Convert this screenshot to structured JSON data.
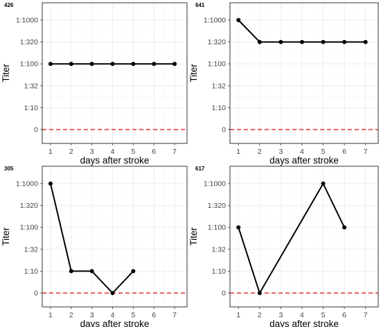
{
  "chart_data": [
    {
      "type": "line",
      "panel_label": "426",
      "xlabel": "days after stroke",
      "ylabel": "Titer",
      "x_ticks": [
        "1",
        "2",
        "3",
        "4",
        "5",
        "6",
        "7"
      ],
      "y_ticks": [
        "0",
        "1:10",
        "1:32",
        "1:100",
        "1:320",
        "1:1000"
      ],
      "xlim": [
        0.6,
        7.6
      ],
      "x": [
        1,
        2,
        3,
        4,
        5,
        6,
        7
      ],
      "values": [
        "1:100",
        "1:100",
        "1:100",
        "1:100",
        "1:100",
        "1:100",
        "1:100"
      ],
      "reference_line": "0",
      "grid": true
    },
    {
      "type": "line",
      "panel_label": "641",
      "xlabel": "days after stroke",
      "ylabel": "Titer",
      "x_ticks": [
        "1",
        "2",
        "3",
        "4",
        "5",
        "6",
        "7"
      ],
      "y_ticks": [
        "0",
        "1:10",
        "1:32",
        "1:100",
        "1:320",
        "1:1000"
      ],
      "xlim": [
        0.6,
        7.6
      ],
      "x": [
        1,
        2,
        3,
        4,
        5,
        6,
        7
      ],
      "values": [
        "1:1000",
        "1:320",
        "1:320",
        "1:320",
        "1:320",
        "1:320",
        "1:320"
      ],
      "reference_line": "0",
      "grid": true
    },
    {
      "type": "line",
      "panel_label": "305",
      "xlabel": "days after stroke",
      "ylabel": "Titer",
      "x_ticks": [
        "1",
        "2",
        "3",
        "4",
        "5",
        "6",
        "7"
      ],
      "y_ticks": [
        "0",
        "1:10",
        "1:32",
        "1:100",
        "1:320",
        "1:1000"
      ],
      "xlim": [
        0.6,
        7.6
      ],
      "x": [
        1,
        2,
        3,
        4,
        5
      ],
      "values": [
        "1:1000",
        "1:10",
        "1:10",
        "0",
        "1:10"
      ],
      "reference_line": "0",
      "grid": true
    },
    {
      "type": "line",
      "panel_label": "617",
      "xlabel": "days after stroke",
      "ylabel": "Titer",
      "x_ticks": [
        "1",
        "2",
        "3",
        "4",
        "5",
        "6",
        "7"
      ],
      "y_ticks": [
        "0",
        "1:10",
        "1:32",
        "1:100",
        "1:320",
        "1:1000"
      ],
      "xlim": [
        0.6,
        7.6
      ],
      "x": [
        1,
        2,
        5,
        6
      ],
      "values": [
        "1:100",
        "0",
        "1:1000",
        "1:100"
      ],
      "reference_line": "0",
      "grid": true
    }
  ],
  "colors": {
    "series": "#000000",
    "reference_line": "#e8312d",
    "grid": "#ebebeb",
    "panel_border": "#333333"
  }
}
